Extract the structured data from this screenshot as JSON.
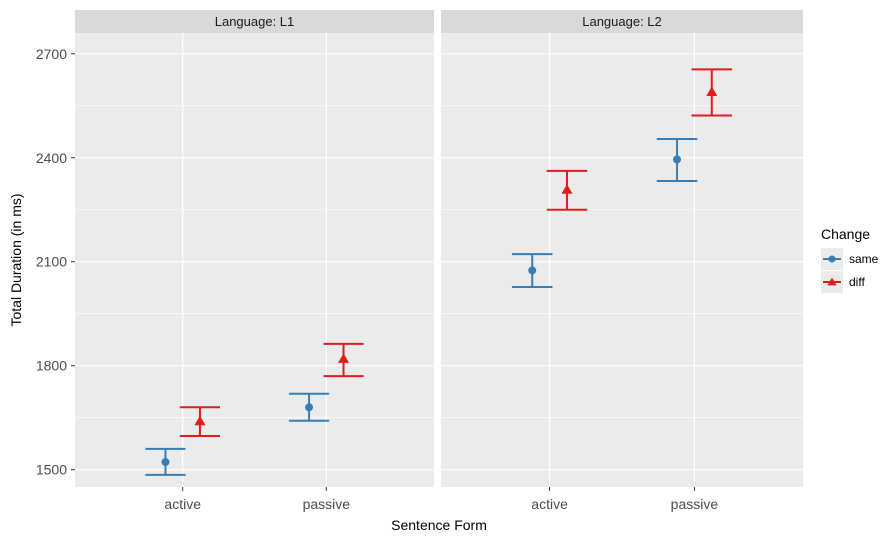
{
  "chart_data": {
    "type": "errorbar",
    "xlabel": "Sentence Form",
    "ylabel": "Total Duration (in ms)",
    "ylim": [
      1450,
      2760
    ],
    "yticks": [
      1500,
      1800,
      2100,
      2400,
      2700
    ],
    "grid": true,
    "legend_position": "right",
    "legend_title": "Change",
    "categories": [
      "active",
      "passive"
    ],
    "series_styles": [
      {
        "name": "same",
        "color": "#377EB8",
        "marker": "circle"
      },
      {
        "name": "diff",
        "color": "#E41A1C",
        "marker": "triangle"
      }
    ],
    "panels": [
      {
        "label": "Language: L1",
        "series": [
          {
            "name": "same",
            "points": [
              {
                "x": "active",
                "y": 1522,
                "low": 1485,
                "high": 1560
              },
              {
                "x": "passive",
                "y": 1680,
                "low": 1641,
                "high": 1719
              }
            ]
          },
          {
            "name": "diff",
            "points": [
              {
                "x": "active",
                "y": 1640,
                "low": 1597,
                "high": 1680
              },
              {
                "x": "passive",
                "y": 1820,
                "low": 1770,
                "high": 1863
              }
            ]
          }
        ]
      },
      {
        "label": "Language: L2",
        "series": [
          {
            "name": "same",
            "points": [
              {
                "x": "active",
                "y": 2075,
                "low": 2027,
                "high": 2122
              },
              {
                "x": "passive",
                "y": 2395,
                "low": 2333,
                "high": 2454
              }
            ]
          },
          {
            "name": "diff",
            "points": [
              {
                "x": "active",
                "y": 2308,
                "low": 2250,
                "high": 2362
              },
              {
                "x": "passive",
                "y": 2590,
                "low": 2522,
                "high": 2655
              }
            ]
          }
        ]
      }
    ]
  }
}
